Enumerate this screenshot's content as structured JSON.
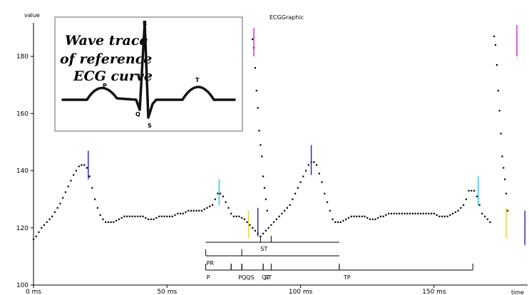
{
  "chart_data": {
    "type": "scatter",
    "title": "ECGGraphic",
    "ylabel": "value",
    "xlabel": "time",
    "xlim": [
      0,
      185
    ],
    "ylim": [
      100,
      192
    ],
    "x_ticks": [
      {
        "value": 0,
        "label": "0 ms"
      },
      {
        "value": 50,
        "label": "50 ms"
      },
      {
        "value": 100,
        "label": "100 ms"
      },
      {
        "value": 150,
        "label": "150 ms"
      }
    ],
    "y_ticks": [
      100,
      120,
      140,
      160,
      180
    ],
    "grid": false,
    "series": [
      {
        "color": "#000000",
        "points": [
          [
            0,
            116
          ],
          [
            1,
            117
          ],
          [
            2,
            118.5
          ],
          [
            3,
            120
          ],
          [
            4,
            121
          ],
          [
            5,
            122
          ],
          [
            6,
            123
          ],
          [
            7,
            124
          ],
          [
            8,
            125.5
          ],
          [
            9,
            127
          ],
          [
            10,
            128.5
          ],
          [
            11,
            130.5
          ],
          [
            12,
            132.5
          ],
          [
            13,
            134.5
          ],
          [
            14,
            136.5
          ],
          [
            15,
            138.5
          ],
          [
            16,
            140
          ],
          [
            17,
            141.5
          ],
          [
            18,
            142
          ],
          [
            19,
            142
          ],
          [
            20,
            141
          ],
          [
            21,
            138
          ],
          [
            22,
            134
          ],
          [
            23,
            130
          ],
          [
            24,
            127
          ],
          [
            25,
            124.5
          ],
          [
            26,
            123
          ],
          [
            27,
            122
          ],
          [
            28,
            122
          ],
          [
            29,
            122
          ],
          [
            30,
            122
          ],
          [
            31,
            122.5
          ],
          [
            32,
            123
          ],
          [
            33,
            123.5
          ],
          [
            34,
            124
          ],
          [
            35,
            124
          ],
          [
            36,
            124
          ],
          [
            37,
            124
          ],
          [
            38,
            124
          ],
          [
            39,
            124
          ],
          [
            40,
            124
          ],
          [
            41,
            124
          ],
          [
            42,
            123.5
          ],
          [
            43,
            123
          ],
          [
            44,
            123
          ],
          [
            45,
            123
          ],
          [
            46,
            123.5
          ],
          [
            47,
            124
          ],
          [
            48,
            124
          ],
          [
            49,
            124
          ],
          [
            50,
            124
          ],
          [
            51,
            124
          ],
          [
            52,
            124
          ],
          [
            53,
            124.5
          ],
          [
            54,
            125
          ],
          [
            55,
            125
          ],
          [
            56,
            125
          ],
          [
            57,
            125.5
          ],
          [
            58,
            126
          ],
          [
            59,
            126
          ],
          [
            60,
            126
          ],
          [
            61,
            126
          ],
          [
            62,
            126
          ],
          [
            63,
            126
          ],
          [
            64,
            126.5
          ],
          [
            65,
            127
          ],
          [
            66,
            127.5
          ],
          [
            67,
            128
          ],
          [
            68,
            130
          ],
          [
            69,
            132
          ],
          [
            70,
            132
          ],
          [
            71,
            131
          ],
          [
            72,
            129
          ],
          [
            73,
            127
          ],
          [
            74,
            125
          ],
          [
            75,
            124
          ],
          [
            76,
            124
          ],
          [
            77,
            124
          ],
          [
            78,
            123.5
          ],
          [
            79,
            123
          ],
          [
            80,
            122
          ],
          [
            81,
            121
          ],
          [
            82,
            120
          ],
          [
            83,
            119
          ],
          [
            84,
            118
          ],
          [
            85,
            117
          ],
          [
            86,
            118
          ],
          [
            87,
            119
          ],
          [
            88,
            120
          ],
          [
            89,
            121
          ],
          [
            90,
            122
          ],
          [
            91,
            123
          ],
          [
            92,
            124
          ],
          [
            93,
            125
          ],
          [
            94,
            126
          ],
          [
            95,
            127
          ],
          [
            96,
            128
          ],
          [
            97,
            130
          ],
          [
            98,
            132
          ],
          [
            99,
            134
          ],
          [
            100,
            136
          ],
          [
            101,
            138
          ],
          [
            102,
            140
          ],
          [
            103,
            142
          ],
          [
            104,
            143
          ],
          [
            105,
            143
          ],
          [
            106,
            142
          ],
          [
            107,
            139
          ],
          [
            108,
            136
          ],
          [
            109,
            132
          ],
          [
            110,
            129
          ],
          [
            111,
            126
          ],
          [
            112,
            123
          ],
          [
            113,
            122
          ],
          [
            114,
            122
          ],
          [
            115,
            122
          ],
          [
            116,
            122.5
          ],
          [
            117,
            123
          ],
          [
            118,
            123.5
          ],
          [
            119,
            124
          ],
          [
            120,
            124
          ],
          [
            121,
            124
          ],
          [
            122,
            124
          ],
          [
            123,
            124
          ],
          [
            124,
            124
          ],
          [
            125,
            123.5
          ],
          [
            126,
            123
          ],
          [
            127,
            123
          ],
          [
            128,
            123
          ],
          [
            129,
            123.5
          ],
          [
            130,
            124
          ],
          [
            131,
            124
          ],
          [
            132,
            124.5
          ],
          [
            133,
            125
          ],
          [
            134,
            125
          ],
          [
            135,
            125
          ],
          [
            136,
            125
          ],
          [
            137,
            125
          ],
          [
            138,
            125
          ],
          [
            139,
            125
          ],
          [
            140,
            125
          ],
          [
            141,
            125
          ],
          [
            142,
            125
          ],
          [
            143,
            125
          ],
          [
            144,
            125
          ],
          [
            145,
            125
          ],
          [
            146,
            125
          ],
          [
            147,
            125
          ],
          [
            148,
            125
          ],
          [
            149,
            125
          ],
          [
            150,
            125
          ],
          [
            151,
            124.5
          ],
          [
            152,
            124
          ],
          [
            153,
            124
          ],
          [
            154,
            124
          ],
          [
            155,
            124
          ],
          [
            156,
            124.5
          ],
          [
            157,
            125
          ],
          [
            158,
            125.5
          ],
          [
            159,
            126
          ],
          [
            160,
            127
          ],
          [
            161,
            128
          ],
          [
            162,
            130
          ],
          [
            163,
            133
          ],
          [
            164,
            133
          ],
          [
            165,
            133
          ],
          [
            166,
            131
          ],
          [
            167,
            128
          ],
          [
            168,
            125
          ],
          [
            169,
            124
          ],
          [
            170,
            123
          ],
          [
            171,
            122
          ]
        ]
      },
      {
        "color": "#000000",
        "points": [
          [
            82,
            186
          ],
          [
            82.5,
            183
          ],
          [
            83,
            176
          ],
          [
            83.5,
            168
          ],
          [
            84,
            162
          ],
          [
            84.5,
            154
          ],
          [
            85,
            149
          ],
          [
            85.5,
            145
          ],
          [
            86,
            138
          ],
          [
            86.5,
            134
          ],
          [
            87,
            130
          ],
          [
            87.5,
            126
          ],
          [
            172.5,
            187
          ],
          [
            173,
            184
          ],
          [
            173.5,
            177
          ],
          [
            174,
            168
          ],
          [
            174.5,
            161
          ],
          [
            175,
            153
          ],
          [
            175.5,
            145
          ],
          [
            176,
            141
          ],
          [
            176.5,
            137
          ],
          [
            177,
            132
          ],
          [
            177.5,
            126
          ]
        ]
      }
    ],
    "markers": [
      {
        "x": 20.5,
        "y_range": [
          137,
          147
        ],
        "color": "#1f1fbf"
      },
      {
        "x": 69.5,
        "y_range": [
          128,
          137
        ],
        "color": "#22c6e6"
      },
      {
        "x": 80.5,
        "y_range": [
          116.5,
          126
        ],
        "color": "#f0d020"
      },
      {
        "x": 82.5,
        "y_range": [
          180,
          190
        ],
        "color": "#cc22cc"
      },
      {
        "x": 84,
        "y_range": [
          117,
          127
        ],
        "color": "#1f1fbf"
      },
      {
        "x": 104,
        "y_range": [
          138.5,
          149
        ],
        "color": "#1f1fbf"
      },
      {
        "x": 166.5,
        "y_range": [
          128,
          138
        ],
        "color": "#22c6e6"
      },
      {
        "x": 177,
        "y_range": [
          116.5,
          127
        ],
        "color": "#f0d020"
      },
      {
        "x": 181,
        "y_range": [
          180,
          191
        ],
        "color": "#cc22cc"
      },
      {
        "x": 184,
        "y_range": [
          114,
          126
        ],
        "color": "#1f1fbf"
      }
    ],
    "intervals": [
      {
        "label": "ST",
        "start": 85,
        "end": 89
      },
      {
        "label": "PR",
        "start": 64.5,
        "end": 78
      },
      {
        "label": "QT",
        "start": 78,
        "end": 114.5
      },
      {
        "label": "P",
        "start": 64.5,
        "end": 74
      },
      {
        "label": "PQ",
        "start": 74,
        "end": 78
      },
      {
        "label": "QS",
        "start": 78,
        "end": 86
      },
      {
        "label": "ST",
        "start": 86,
        "end": 89
      },
      {
        "label": "TP",
        "start": 114.5,
        "end": 164.5
      }
    ]
  },
  "inset": {
    "title_lines": [
      "Wave trace",
      "of reference",
      "ECG curve"
    ],
    "wave_labels": {
      "P": "P",
      "Q": "Q",
      "R": "R",
      "S": "S",
      "T": "T"
    }
  }
}
